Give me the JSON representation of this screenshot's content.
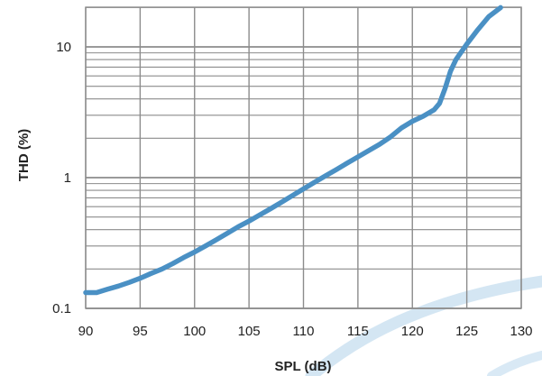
{
  "chart_data": {
    "type": "line",
    "title": "",
    "xlabel": "SPL (dB)",
    "ylabel": "THD (%)",
    "xlim": [
      90,
      130
    ],
    "ylim": [
      0.1,
      20
    ],
    "y_scale": "log",
    "grid": true,
    "x_ticks": [
      90,
      95,
      100,
      105,
      110,
      115,
      120,
      125,
      130
    ],
    "x_tick_labels": [
      "90",
      "95",
      "100",
      "105",
      "110",
      "115",
      "120",
      "125",
      "130"
    ],
    "y_ticks": [
      0.1,
      1,
      10
    ],
    "y_tick_labels": [
      "0.1",
      "1",
      "10"
    ],
    "series": [
      {
        "color": "#4a90c4",
        "x": [
          90,
          91,
          92,
          93,
          94,
          95,
          96,
          97,
          98,
          99,
          100,
          101,
          102,
          103,
          104,
          105,
          106,
          107,
          108,
          109,
          110,
          111,
          112,
          113,
          114,
          115,
          116,
          117,
          118,
          119,
          120,
          121,
          122,
          122.5,
          123,
          123.5,
          124,
          125,
          126,
          127,
          128.1
        ],
        "y": [
          0.132,
          0.132,
          0.14,
          0.148,
          0.158,
          0.17,
          0.185,
          0.2,
          0.22,
          0.245,
          0.27,
          0.3,
          0.335,
          0.375,
          0.42,
          0.465,
          0.52,
          0.58,
          0.65,
          0.73,
          0.82,
          0.92,
          1.03,
          1.15,
          1.29,
          1.44,
          1.61,
          1.8,
          2.05,
          2.4,
          2.7,
          2.95,
          3.3,
          3.7,
          4.8,
          6.5,
          8.0,
          10.5,
          13.5,
          17,
          20
        ]
      }
    ]
  },
  "colors": {
    "grid": "#8c8c8c",
    "line": "#4a90c4",
    "decor_swoosh": "#cfe3f2"
  }
}
